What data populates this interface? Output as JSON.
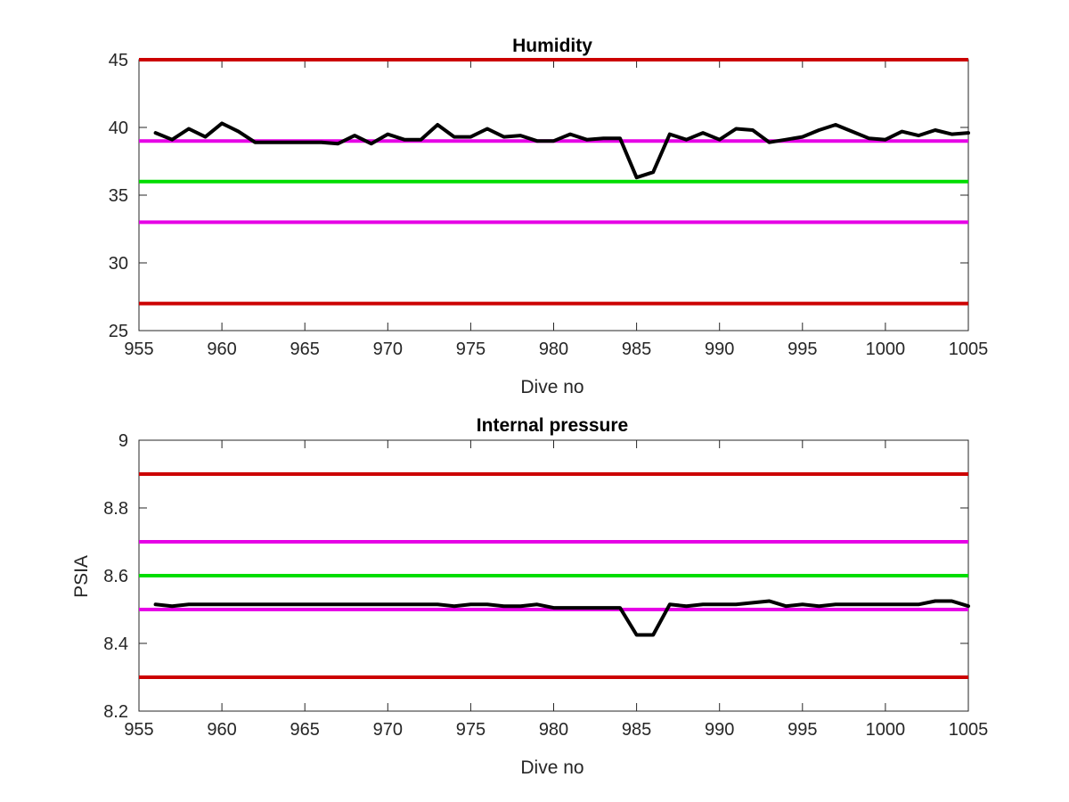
{
  "chart_data": [
    {
      "type": "line",
      "title": "Humidity",
      "xlabel": "Dive no",
      "ylabel": "",
      "xlim": [
        955,
        1005
      ],
      "ylim": [
        25,
        45
      ],
      "xticks": [
        "955",
        "960",
        "965",
        "970",
        "975",
        "980",
        "985",
        "990",
        "995",
        "1000",
        "1005"
      ],
      "yticks": [
        "25",
        "30",
        "35",
        "40",
        "45"
      ],
      "grid": false,
      "threshold_lines": [
        {
          "value": 45,
          "color": "#cc0000"
        },
        {
          "value": 39,
          "color": "#e600e6"
        },
        {
          "value": 36,
          "color": "#00dd00"
        },
        {
          "value": 33,
          "color": "#e600e6"
        },
        {
          "value": 27,
          "color": "#cc0000"
        }
      ],
      "series": [
        {
          "color": "#000000",
          "x": [
            956,
            957,
            958,
            959,
            960,
            961,
            962,
            963,
            964,
            965,
            966,
            967,
            968,
            969,
            970,
            971,
            972,
            973,
            974,
            975,
            976,
            977,
            978,
            979,
            980,
            981,
            982,
            983,
            984,
            985,
            986,
            987,
            988,
            989,
            990,
            991,
            992,
            993,
            994,
            995,
            996,
            997,
            998,
            999,
            1000,
            1001,
            1002,
            1003,
            1004,
            1005
          ],
          "values": [
            39.6,
            39.1,
            39.9,
            39.3,
            40.3,
            39.7,
            38.9,
            38.9,
            38.9,
            38.9,
            38.9,
            38.8,
            39.4,
            38.8,
            39.5,
            39.1,
            39.1,
            40.2,
            39.3,
            39.3,
            39.9,
            39.3,
            39.4,
            39.0,
            39.0,
            39.5,
            39.1,
            39.2,
            39.2,
            36.3,
            36.7,
            39.5,
            39.1,
            39.6,
            39.1,
            39.9,
            39.8,
            38.9,
            39.1,
            39.3,
            39.8,
            40.2,
            39.7,
            39.2,
            39.1,
            39.7,
            39.4,
            39.8,
            39.5,
            39.6
          ]
        }
      ]
    },
    {
      "type": "line",
      "title": "Internal pressure",
      "xlabel": "Dive no",
      "ylabel": "PSIA",
      "xlim": [
        955,
        1005
      ],
      "ylim": [
        8.2,
        9
      ],
      "xticks": [
        "955",
        "960",
        "965",
        "970",
        "975",
        "980",
        "985",
        "990",
        "995",
        "1000",
        "1005"
      ],
      "yticks": [
        "8.2",
        "8.4",
        "8.6",
        "8.8",
        "9"
      ],
      "grid": false,
      "threshold_lines": [
        {
          "value": 8.9,
          "color": "#cc0000"
        },
        {
          "value": 8.7,
          "color": "#e600e6"
        },
        {
          "value": 8.6,
          "color": "#00dd00"
        },
        {
          "value": 8.5,
          "color": "#e600e6"
        },
        {
          "value": 8.3,
          "color": "#cc0000"
        }
      ],
      "series": [
        {
          "color": "#000000",
          "x": [
            956,
            957,
            958,
            959,
            960,
            961,
            962,
            963,
            964,
            965,
            966,
            967,
            968,
            969,
            970,
            971,
            972,
            973,
            974,
            975,
            976,
            977,
            978,
            979,
            980,
            981,
            982,
            983,
            984,
            985,
            986,
            987,
            988,
            989,
            990,
            991,
            992,
            993,
            994,
            995,
            996,
            997,
            998,
            999,
            1000,
            1001,
            1002,
            1003,
            1004,
            1005
          ],
          "values": [
            8.515,
            8.51,
            8.515,
            8.515,
            8.515,
            8.515,
            8.515,
            8.515,
            8.515,
            8.515,
            8.515,
            8.515,
            8.515,
            8.515,
            8.515,
            8.515,
            8.515,
            8.515,
            8.51,
            8.515,
            8.515,
            8.51,
            8.51,
            8.515,
            8.505,
            8.505,
            8.505,
            8.505,
            8.505,
            8.425,
            8.425,
            8.515,
            8.51,
            8.515,
            8.515,
            8.515,
            8.52,
            8.525,
            8.51,
            8.515,
            8.51,
            8.515,
            8.515,
            8.515,
            8.515,
            8.515,
            8.515,
            8.525,
            8.525,
            8.51
          ]
        }
      ]
    }
  ]
}
